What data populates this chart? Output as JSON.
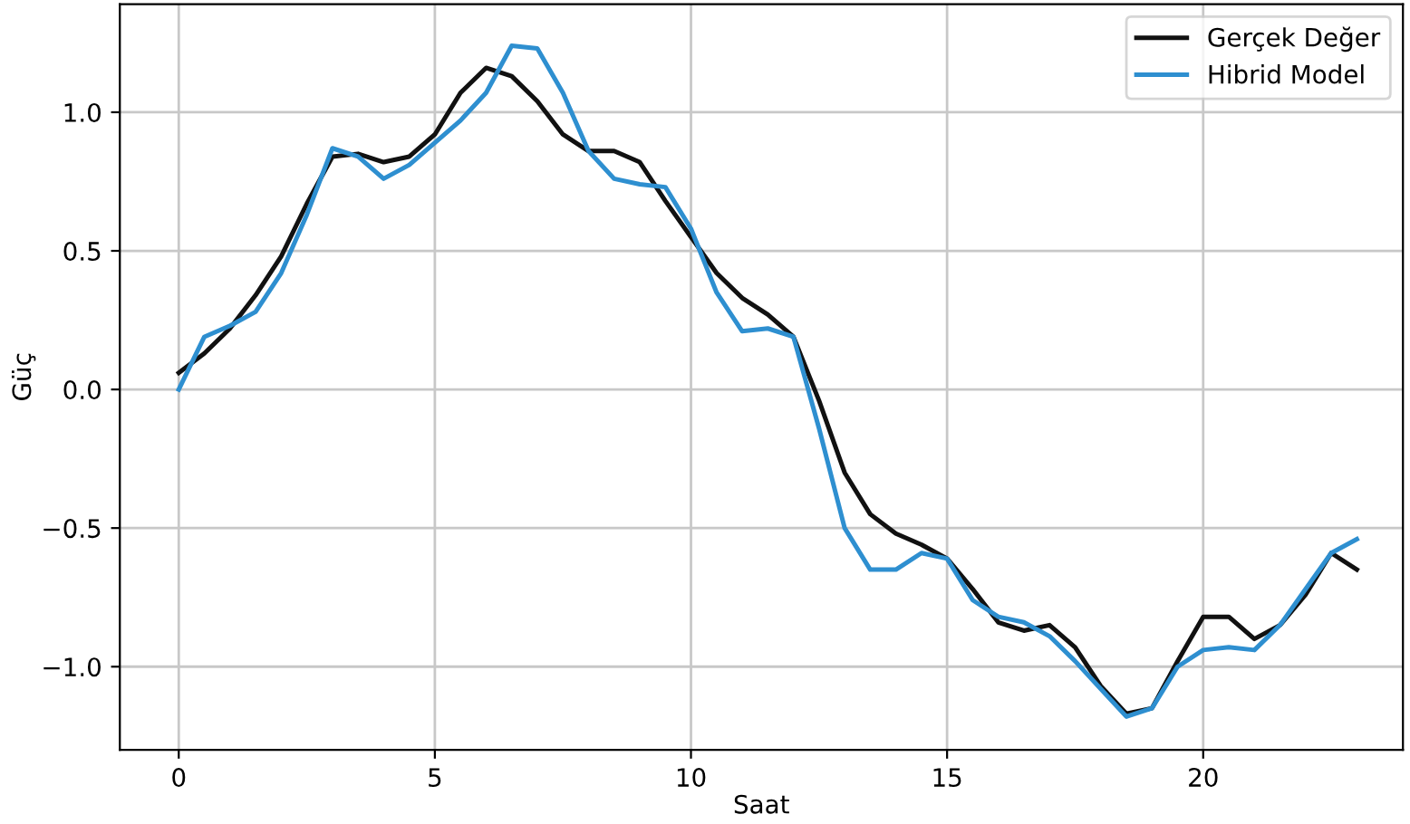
{
  "chart_data": {
    "type": "line",
    "xlabel": "Saat",
    "ylabel": "Güç",
    "x": [
      0,
      0.5,
      1,
      1.5,
      2,
      2.5,
      3,
      3.5,
      4,
      4.5,
      5,
      5.5,
      6,
      6.5,
      7,
      7.5,
      8,
      8.5,
      9,
      9.5,
      10,
      10.5,
      11,
      11.5,
      12,
      12.5,
      13,
      13.5,
      14,
      14.5,
      15,
      15.5,
      16,
      16.5,
      17,
      17.5,
      18,
      18.5,
      19,
      19.5,
      20,
      20.5,
      21,
      21.5,
      22,
      22.5,
      23
    ],
    "series": [
      {
        "name": "Gerçek Değer",
        "color": "#111111",
        "values": [
          0.06,
          0.13,
          0.22,
          0.34,
          0.48,
          0.67,
          0.84,
          0.85,
          0.82,
          0.84,
          0.92,
          1.07,
          1.16,
          1.13,
          1.04,
          0.92,
          0.86,
          0.86,
          0.82,
          0.68,
          0.55,
          0.42,
          0.33,
          0.27,
          0.19,
          -0.04,
          -0.3,
          -0.45,
          -0.52,
          -0.56,
          -0.61,
          -0.72,
          -0.84,
          -0.87,
          -0.85,
          -0.93,
          -1.07,
          -1.17,
          -1.15,
          -0.98,
          -0.82,
          -0.82,
          -0.9,
          -0.85,
          -0.74,
          -0.59,
          -0.65
        ]
      },
      {
        "name": "Hibrid Model",
        "color": "#2e8fd0",
        "values": [
          0.0,
          0.19,
          0.23,
          0.28,
          0.42,
          0.63,
          0.87,
          0.84,
          0.76,
          0.81,
          0.89,
          0.97,
          1.07,
          1.24,
          1.23,
          1.07,
          0.86,
          0.76,
          0.74,
          0.73,
          0.58,
          0.35,
          0.21,
          0.22,
          0.19,
          -0.14,
          -0.5,
          -0.65,
          -0.65,
          -0.59,
          -0.61,
          -0.76,
          -0.82,
          -0.84,
          -0.89,
          -0.98,
          -1.08,
          -1.18,
          -1.15,
          -1.0,
          -0.94,
          -0.93,
          -0.94,
          -0.85,
          -0.72,
          -0.59,
          -0.54
        ]
      }
    ],
    "xlim": [
      -1.15,
      23.9
    ],
    "ylim": [
      -1.3,
      1.39
    ],
    "xticks": [
      0,
      5,
      10,
      15,
      20
    ],
    "yticks": [
      {
        "value": -1.0,
        "label": "−1.0"
      },
      {
        "value": -0.5,
        "label": "−0.5"
      },
      {
        "value": 0.0,
        "label": "0.0"
      },
      {
        "value": 0.5,
        "label": "0.5"
      },
      {
        "value": 1.0,
        "label": "1.0"
      }
    ],
    "grid": true,
    "legend": "top right",
    "marker": "none",
    "line_style": "solid"
  }
}
